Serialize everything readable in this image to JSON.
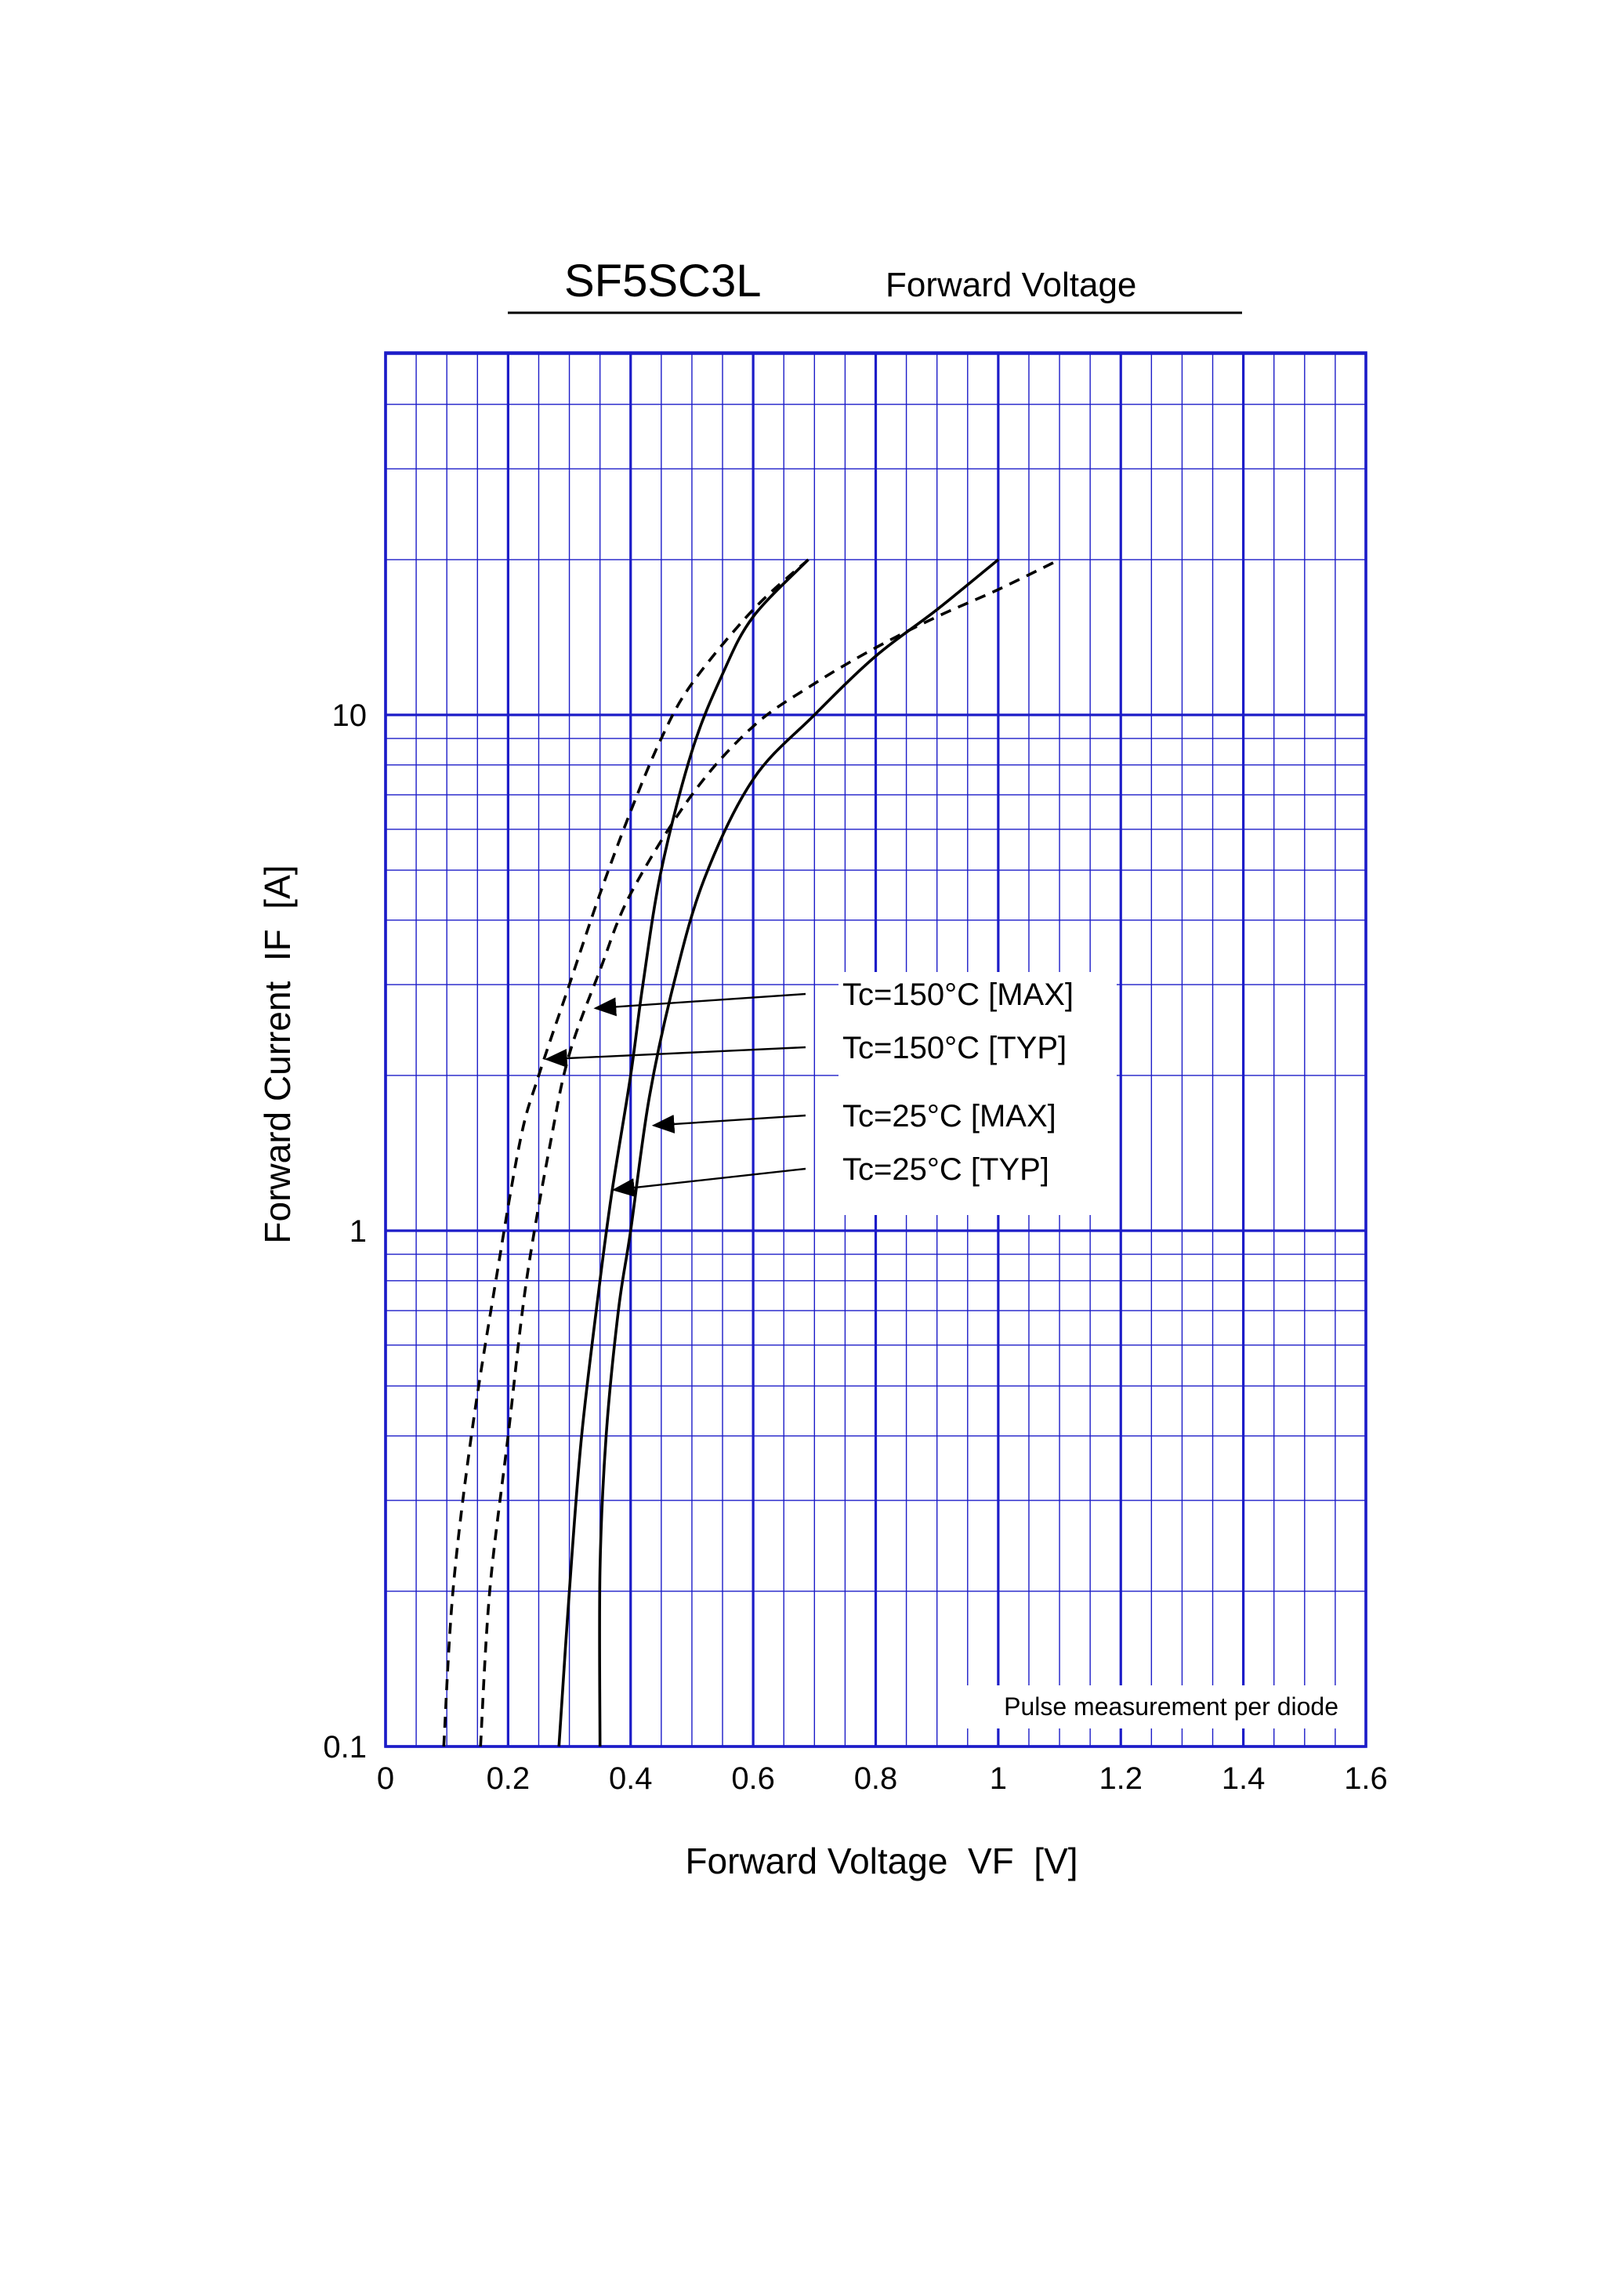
{
  "chart_data": {
    "type": "line",
    "title": "SF5SC3L",
    "subtitle": "Forward Voltage",
    "xlabel": "Forward Voltage  VF  [V]",
    "ylabel": "Forward Current  IF  [A]",
    "xlim": [
      0,
      1.6
    ],
    "ylim": [
      0.1,
      40
    ],
    "yscale": "log",
    "grid": true,
    "x_ticks": [
      "0",
      "0.2",
      "0.4",
      "0.6",
      "0.8",
      "1",
      "1.2",
      "1.4",
      "1.6"
    ],
    "y_ticks": [
      "0.1",
      "1",
      "10"
    ],
    "note": "Pulse measurement per diode",
    "colors": {
      "grid": "#1c1cc8",
      "curve": "#000000"
    },
    "series": [
      {
        "name": "Tc=150°C [TYP]",
        "style": "dashed",
        "points": [
          [
            0.095,
            0.1
          ],
          [
            0.11,
            0.2
          ],
          [
            0.14,
            0.4
          ],
          [
            0.18,
            0.8
          ],
          [
            0.22,
            1.5
          ],
          [
            0.25,
            2.0
          ],
          [
            0.3,
            3.0
          ],
          [
            0.35,
            4.5
          ],
          [
            0.4,
            6.5
          ],
          [
            0.45,
            9.0
          ],
          [
            0.5,
            11.5
          ],
          [
            0.6,
            16.0
          ],
          [
            0.69,
            20.0
          ]
        ]
      },
      {
        "name": "Tc=150°C [MAX]",
        "style": "dashed",
        "points": [
          [
            0.155,
            0.1
          ],
          [
            0.17,
            0.2
          ],
          [
            0.2,
            0.4
          ],
          [
            0.23,
            0.8
          ],
          [
            0.27,
            1.5
          ],
          [
            0.3,
            2.2
          ],
          [
            0.35,
            3.2
          ],
          [
            0.4,
            4.5
          ],
          [
            0.5,
            7.0
          ],
          [
            0.6,
            9.5
          ],
          [
            0.7,
            11.5
          ],
          [
            0.8,
            13.5
          ],
          [
            0.9,
            15.5
          ],
          [
            1.0,
            17.5
          ],
          [
            1.1,
            20.0
          ]
        ]
      },
      {
        "name": "Tc=25°C [TYP]",
        "style": "solid",
        "points": [
          [
            0.283,
            0.1
          ],
          [
            0.3,
            0.2
          ],
          [
            0.32,
            0.4
          ],
          [
            0.35,
            0.8
          ],
          [
            0.37,
            1.2
          ],
          [
            0.4,
            2.0
          ],
          [
            0.42,
            3.0
          ],
          [
            0.45,
            5.0
          ],
          [
            0.5,
            8.5
          ],
          [
            0.55,
            12.0
          ],
          [
            0.6,
            15.5
          ],
          [
            0.69,
            20.0
          ]
        ]
      },
      {
        "name": "Tc=25°C [MAX]",
        "style": "solid",
        "points": [
          [
            0.35,
            0.1
          ],
          [
            0.35,
            0.22
          ],
          [
            0.36,
            0.4
          ],
          [
            0.38,
            0.7
          ],
          [
            0.4,
            1.0
          ],
          [
            0.43,
            1.8
          ],
          [
            0.47,
            3.0
          ],
          [
            0.52,
            4.8
          ],
          [
            0.6,
            7.5
          ],
          [
            0.7,
            10.0
          ],
          [
            0.8,
            13.0
          ],
          [
            0.9,
            16.0
          ],
          [
            1.0,
            20.0
          ]
        ]
      }
    ],
    "annotations": [
      {
        "text": "Tc=150°C [MAX]",
        "target": [
          0.34,
          2.7
        ]
      },
      {
        "text": "Tc=150°C [TYP]",
        "target": [
          0.26,
          2.15
        ]
      },
      {
        "text": "Tc=25°C [MAX]",
        "target": [
          0.435,
          1.6
        ]
      },
      {
        "text": "Tc=25°C [TYP]",
        "target": [
          0.37,
          1.2
        ]
      }
    ]
  }
}
